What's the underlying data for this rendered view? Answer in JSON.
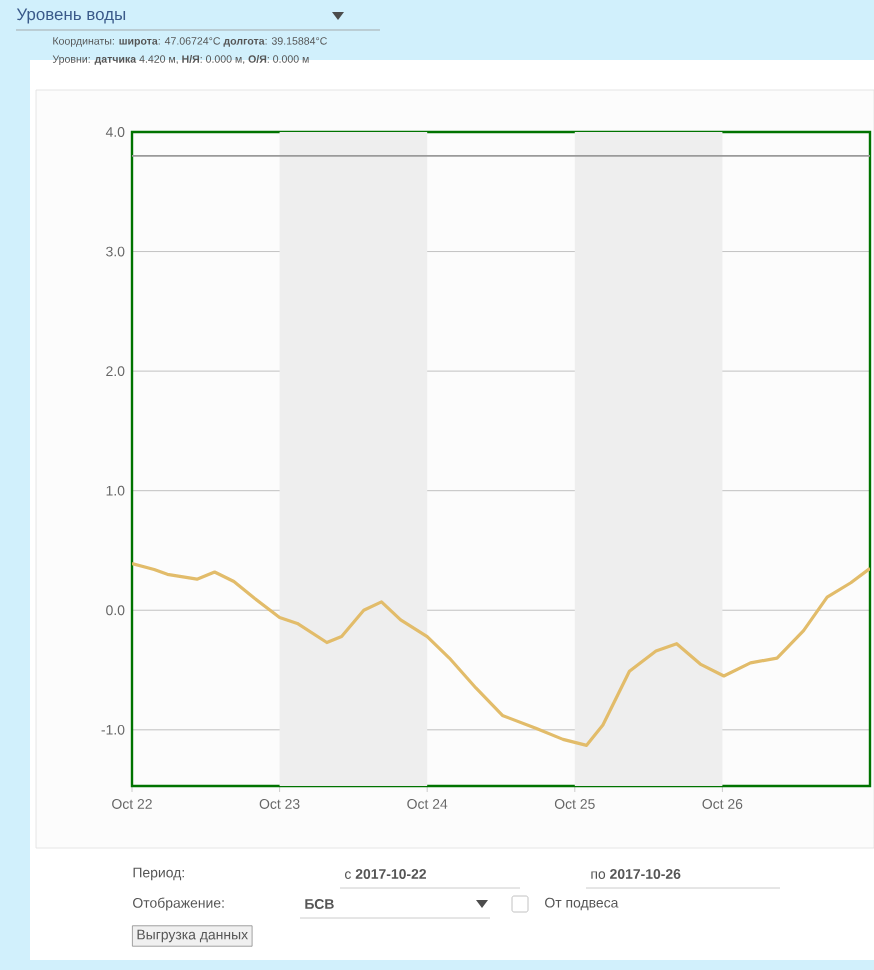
{
  "chart_data": {
    "type": "line",
    "title": "Уровень воды",
    "subtitle": "Координаты: **широта**: 47.06724°C **долгота**: 39.15884°C",
    "annotations": [
      "Уровни: **датчика** 4.420 м, **Н/Я**: 0.000 м, **О/Я**: 0.000 м",
      "Период:",
      "с **2017-10-22**",
      "по **2017-10-26**",
      "Отображение:",
      "**БСВ**",
      "От подвеса",
      "Выгрузка данных"
    ],
    "series": [
      {
        "color": "#e2bc6a",
        "x": [
          "2017-10-22T00:00",
          "2017-10-22T03:36",
          "2017-10-22T05:45",
          "2017-10-22T10:34",
          "2017-10-22T13:26",
          "2017-10-22T16:34",
          "2017-10-22T19:55",
          "2017-10-23T00:00",
          "2017-10-23T02:53",
          "2017-10-23T07:41",
          "2017-10-23T10:05",
          "2017-10-23T13:41",
          "2017-10-23T16:34",
          "2017-10-23T19:41",
          "2017-10-24T00:00",
          "2017-10-24T03:36",
          "2017-10-24T07:55",
          "2017-10-24T12:14",
          "2017-10-24T17:46",
          "2017-10-24T22:05",
          "2017-10-25T01:55",
          "2017-10-25T04:34",
          "2017-10-25T08:53",
          "2017-10-25T13:12",
          "2017-10-25T16:34",
          "2017-10-25T20:24",
          "2017-10-26T00:14",
          "2017-10-26T04:34",
          "2017-10-26T08:53",
          "2017-10-26T13:12",
          "2017-10-26T17:02",
          "2017-10-26T20:53",
          "2017-10-27T00:00"
        ],
        "values": [
          0.39,
          0.34,
          0.3,
          0.26,
          0.32,
          0.24,
          0.1,
          -0.06,
          -0.11,
          -0.27,
          -0.22,
          0.0,
          0.07,
          -0.08,
          -0.22,
          -0.4,
          -0.65,
          -0.88,
          -0.99,
          -1.08,
          -1.13,
          -0.96,
          -0.51,
          -0.34,
          -0.28,
          -0.45,
          -0.55,
          -0.44,
          -0.4,
          -0.17,
          0.11,
          0.23,
          0.35
        ]
      }
    ],
    "xlim": [
      "2017-10-22T00:00",
      "2017-10-27T00:00"
    ],
    "xticks": [
      {
        "value": "2017-10-22",
        "label": "Oct 22"
      },
      {
        "value": "2017-10-23",
        "label": "Oct 23"
      },
      {
        "value": "2017-10-24",
        "label": "Oct 24"
      },
      {
        "value": "2017-10-25",
        "label": "Oct 25"
      },
      {
        "value": "2017-10-26",
        "label": "Oct 26"
      }
    ],
    "ylim": [
      -1.47,
      4.0
    ],
    "yticks": [
      {
        "value": -1,
        "label": "-1.0"
      },
      {
        "value": 0,
        "label": "0.0"
      },
      {
        "value": 1,
        "label": "1.0"
      },
      {
        "value": 2,
        "label": "2.0"
      },
      {
        "value": 3,
        "label": "3.0"
      },
      {
        "value": 4,
        "label": "4.0"
      }
    ],
    "grid": "y",
    "ref_lines": [
      {
        "axis": "y",
        "value": 3.8,
        "color": "#9a9a9a"
      }
    ],
    "bands": [
      {
        "axis": "x",
        "from": "2017-10-23",
        "to": "2017-10-24",
        "color": "#eeeeee"
      },
      {
        "axis": "x",
        "from": "2017-10-25",
        "to": "2017-10-26",
        "color": "#eeeeee"
      }
    ]
  }
}
